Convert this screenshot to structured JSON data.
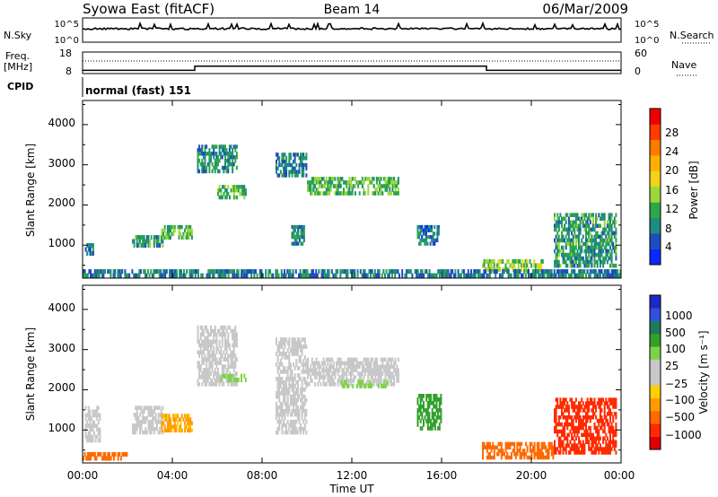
{
  "header": {
    "station": "Syowa East (fitACF)",
    "beam": "Beam 14",
    "date": "06/Mar/2009"
  },
  "top_panels": {
    "nsky_label": "N.Sky",
    "nsky_ticks": [
      "10^5",
      "10^0"
    ],
    "nsearch_label": "N.Search",
    "nsearch_ticks": [
      "10^5",
      "10^0"
    ],
    "freq_label": "Freq.",
    "freq_unit": "[MHz]",
    "freq_ticks": [
      "18",
      "8"
    ],
    "nave_label": "Nave",
    "nave_ticks": [
      "60",
      "0"
    ],
    "cpid_label": "CPID",
    "cpid_value": "normal (fast) 151"
  },
  "axes": {
    "x_ticks": [
      "00:00",
      "04:00",
      "08:00",
      "12:00",
      "16:00",
      "20:00",
      "00:00"
    ],
    "xlabel": "Time UT",
    "ylabel": "Slant Range [km]",
    "y_ticks": [
      "1000",
      "2000",
      "3000",
      "4000"
    ]
  },
  "power_colorbar": {
    "label": "Power [dB]",
    "ticks": [
      "4",
      "8",
      "12",
      "16",
      "20",
      "24",
      "28"
    ],
    "colors": [
      "#0a28ff",
      "#1f4cc0",
      "#1e8c7e",
      "#2fa64a",
      "#9bd83a",
      "#f2d21a",
      "#ffb000",
      "#ff7a00",
      "#ff3c00",
      "#ee0000"
    ]
  },
  "velocity_colorbar": {
    "label": "Velocity [m s⁻¹]",
    "ticks": [
      "1000",
      "500",
      "100",
      "25",
      "−25",
      "−100",
      "−500",
      "−1000"
    ],
    "colors": [
      "#1f28c8",
      "#2f50d8",
      "#1e7a5e",
      "#33a02c",
      "#7ed34a",
      "#c8c8c8",
      "#c8c8c8",
      "#ffd000",
      "#ff9d00",
      "#ff6a00",
      "#ff2a00",
      "#e00000"
    ]
  },
  "chart_data": [
    {
      "type": "heatmap",
      "title": "",
      "xlabel": "Time UT",
      "ylabel": "Slant Range [km]",
      "xlim": [
        0,
        24
      ],
      "ylim": [
        180,
        4600
      ],
      "colorbar_label": "Power [dB]",
      "regions": [
        {
          "t0": 0.1,
          "t1": 0.5,
          "r0": 750,
          "r1": 1050,
          "v": 6
        },
        {
          "t0": 2.2,
          "t1": 3.6,
          "r0": 950,
          "r1": 1250,
          "v": 9
        },
        {
          "t0": 3.5,
          "t1": 4.9,
          "r0": 1150,
          "r1": 1500,
          "v": 11
        },
        {
          "t0": 5.1,
          "t1": 6.9,
          "r0": 2800,
          "r1": 3500,
          "v": 8
        },
        {
          "t0": 6.0,
          "t1": 7.3,
          "r0": 2150,
          "r1": 2500,
          "v": 10
        },
        {
          "t0": 8.6,
          "t1": 10.0,
          "r0": 2700,
          "r1": 3300,
          "v": 7
        },
        {
          "t0": 9.3,
          "t1": 9.9,
          "r0": 1000,
          "r1": 1500,
          "v": 8
        },
        {
          "t0": 10.0,
          "t1": 14.1,
          "r0": 2250,
          "r1": 2700,
          "v": 11
        },
        {
          "t0": 14.9,
          "t1": 15.9,
          "r0": 1000,
          "r1": 1500,
          "v": 6
        },
        {
          "t0": 17.8,
          "t1": 20.6,
          "r0": 350,
          "r1": 650,
          "v": 13
        },
        {
          "t0": 21.0,
          "t1": 23.8,
          "r0": 450,
          "r1": 1800,
          "v": 9
        },
        {
          "t0": 0.0,
          "t1": 24.0,
          "r0": 200,
          "r1": 400,
          "v": 7
        }
      ]
    },
    {
      "type": "heatmap",
      "title": "",
      "xlabel": "Time UT",
      "ylabel": "Slant Range [km]",
      "xlim": [
        0,
        24
      ],
      "ylim": [
        180,
        4600
      ],
      "colorbar_label": "Velocity [m s⁻¹]",
      "regions": [
        {
          "t0": 0.1,
          "t1": 0.8,
          "r0": 700,
          "r1": 1600,
          "v": 0
        },
        {
          "t0": 2.2,
          "t1": 3.6,
          "r0": 900,
          "r1": 1600,
          "v": 0
        },
        {
          "t0": 3.5,
          "t1": 4.9,
          "r0": 950,
          "r1": 1400,
          "v": -60
        },
        {
          "t0": 5.1,
          "t1": 6.9,
          "r0": 2100,
          "r1": 3600,
          "v": 0
        },
        {
          "t0": 6.0,
          "t1": 7.3,
          "r0": 2200,
          "r1": 2400,
          "v": 60
        },
        {
          "t0": 8.6,
          "t1": 10.0,
          "r0": 900,
          "r1": 3300,
          "v": 0
        },
        {
          "t0": 10.0,
          "t1": 14.1,
          "r0": 2100,
          "r1": 2800,
          "v": 0
        },
        {
          "t0": 11.5,
          "t1": 13.6,
          "r0": 2050,
          "r1": 2250,
          "v": 60
        },
        {
          "t0": 14.9,
          "t1": 16.0,
          "r0": 1000,
          "r1": 1900,
          "v": 150
        },
        {
          "t0": 17.8,
          "t1": 21.0,
          "r0": 280,
          "r1": 700,
          "v": -150
        },
        {
          "t0": 21.0,
          "t1": 23.8,
          "r0": 400,
          "r1": 1800,
          "v": -300
        },
        {
          "t0": 0.0,
          "t1": 2.0,
          "r0": 250,
          "r1": 450,
          "v": -150
        }
      ]
    },
    {
      "type": "line",
      "title": "",
      "xlabel": "Time UT",
      "ylabel": "Freq. [MHz]",
      "xlim": [
        0,
        24
      ],
      "ylim": [
        8,
        18
      ],
      "series": [
        {
          "x": [
            0,
            5,
            5,
            18,
            18,
            24
          ],
          "values": [
            9.5,
            9.5,
            11.4,
            11.4,
            9.5,
            9.5
          ]
        }
      ]
    },
    {
      "type": "line",
      "title": "",
      "xlabel": "Time UT",
      "ylabel": "Nave",
      "xlim": [
        0,
        24
      ],
      "ylim": [
        0,
        60
      ],
      "series": [
        {
          "x": [
            0,
            24
          ],
          "values": [
            35,
            35
          ]
        }
      ]
    }
  ]
}
